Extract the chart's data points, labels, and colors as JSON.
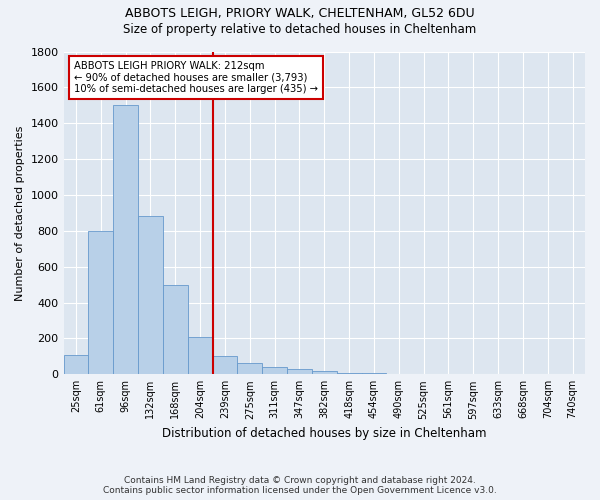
{
  "title1": "ABBOTS LEIGH, PRIORY WALK, CHELTENHAM, GL52 6DU",
  "title2": "Size of property relative to detached houses in Cheltenham",
  "xlabel": "Distribution of detached houses by size in Cheltenham",
  "ylabel": "Number of detached properties",
  "categories": [
    "25sqm",
    "61sqm",
    "96sqm",
    "132sqm",
    "168sqm",
    "204sqm",
    "239sqm",
    "275sqm",
    "311sqm",
    "347sqm",
    "382sqm",
    "418sqm",
    "454sqm",
    "490sqm",
    "525sqm",
    "561sqm",
    "597sqm",
    "633sqm",
    "668sqm",
    "704sqm",
    "740sqm"
  ],
  "values": [
    110,
    800,
    1500,
    880,
    500,
    210,
    100,
    65,
    40,
    30,
    20,
    10,
    5,
    3,
    2,
    2,
    1,
    1,
    1,
    1,
    0
  ],
  "bar_color": "#b8d0e8",
  "bar_edge_color": "#6699cc",
  "vline_color": "#cc0000",
  "annotation_title": "ABBOTS LEIGH PRIORY WALK: 212sqm",
  "annotation_line1": "← 90% of detached houses are smaller (3,793)",
  "annotation_line2": "10% of semi-detached houses are larger (435) →",
  "ylim": [
    0,
    1800
  ],
  "yticks": [
    0,
    200,
    400,
    600,
    800,
    1000,
    1200,
    1400,
    1600,
    1800
  ],
  "footer1": "Contains HM Land Registry data © Crown copyright and database right 2024.",
  "footer2": "Contains public sector information licensed under the Open Government Licence v3.0.",
  "bg_color": "#eef2f8",
  "plot_bg_color": "#dde6f0"
}
